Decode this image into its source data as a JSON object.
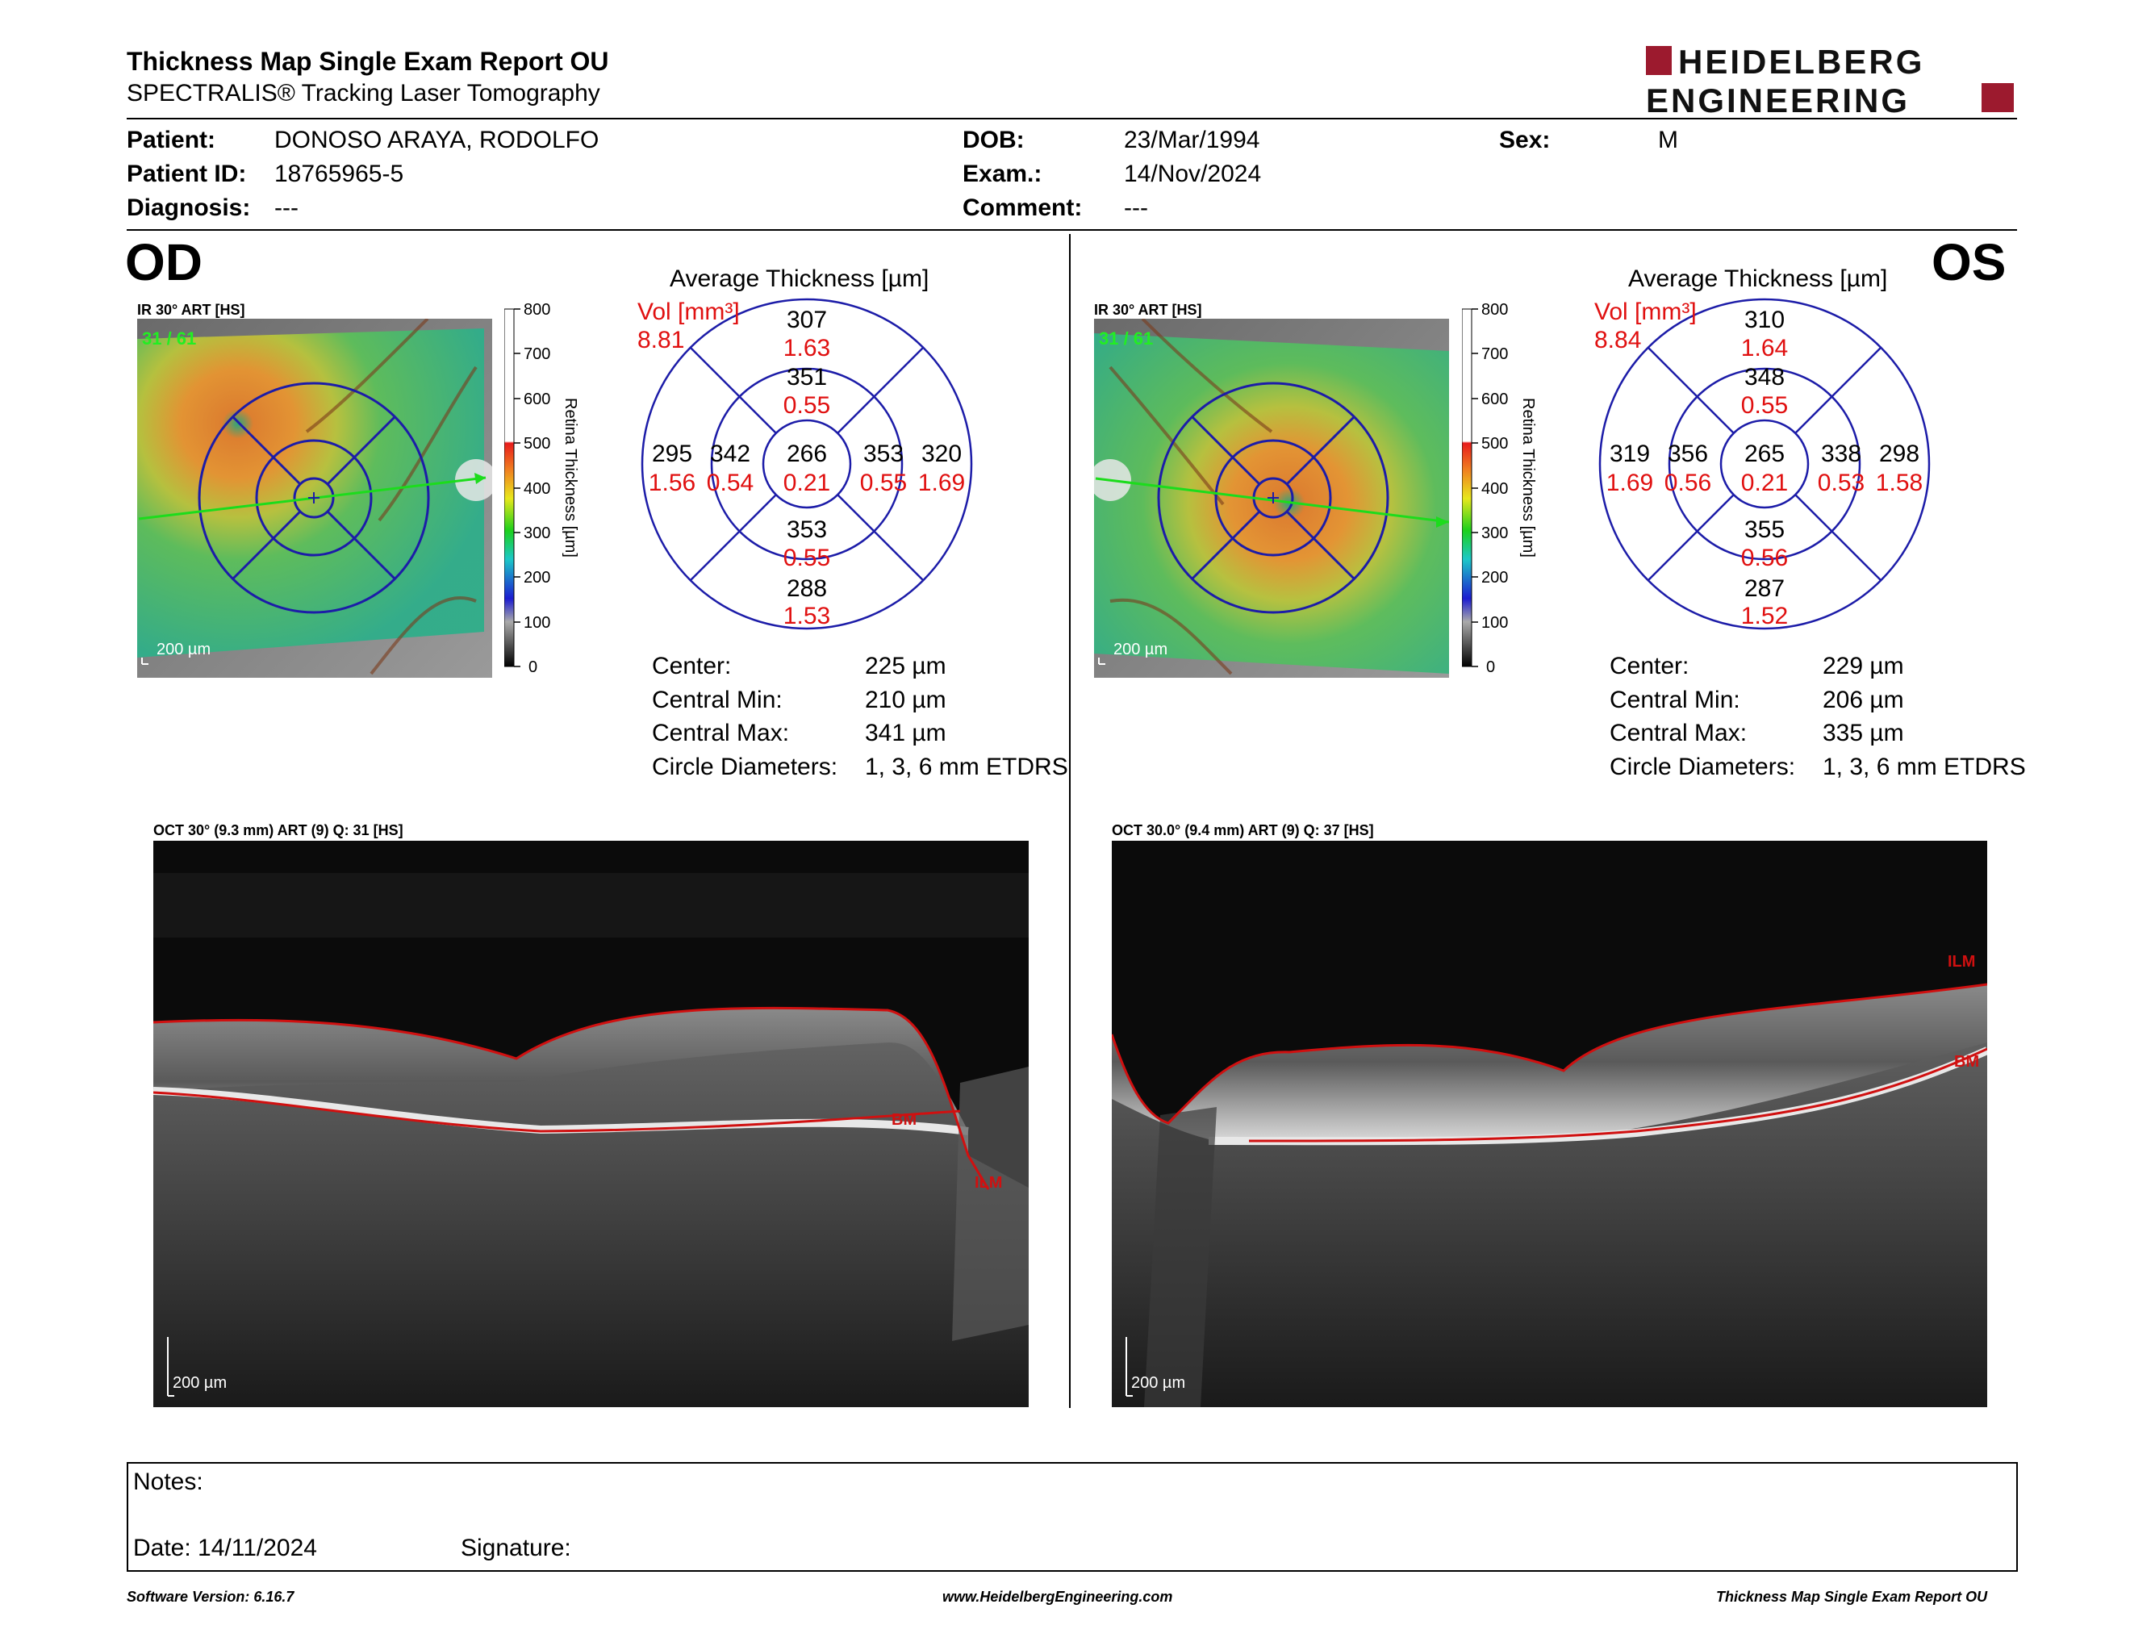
{
  "header": {
    "title": "Thickness Map Single Exam Report OU",
    "subtitle": "SPECTRALIS® Tracking Laser Tomography",
    "logo_line1": "HEIDELBERG",
    "logo_line2": "ENGINEERING"
  },
  "patient": {
    "patient_label": "Patient:",
    "patient_value": "DONOSO ARAYA, RODOLFO",
    "id_label": "Patient ID:",
    "id_value": "18765965-5",
    "diagnosis_label": "Diagnosis:",
    "diagnosis_value": "---",
    "dob_label": "DOB:",
    "dob_value": "23/Mar/1994",
    "exam_label": "Exam.:",
    "exam_value": "14/Nov/2024",
    "comment_label": "Comment:",
    "comment_value": "---",
    "sex_label": "Sex:",
    "sex_value": "M"
  },
  "od": {
    "eye": "OD",
    "map_label": "IR 30° ART [HS]",
    "frames": "31 / 61",
    "scale": "200 µm",
    "colorbar_title": "Retina Thickness [µm]",
    "colorbar_ticks": [
      "800",
      "700",
      "600",
      "500",
      "400",
      "300",
      "200",
      "100",
      "0"
    ],
    "etdrs_title": "Average Thickness [µm]",
    "vol_label": "Vol [mm³]",
    "vol_total": "8.81",
    "sectors": {
      "center": {
        "thk": "266",
        "vol": "0.21"
      },
      "inner_sup": {
        "thk": "351",
        "vol": "0.55"
      },
      "inner_inf": {
        "thk": "353",
        "vol": "0.55"
      },
      "inner_nasal_left": {
        "thk": "342",
        "vol": "0.54"
      },
      "inner_temp_right": {
        "thk": "353",
        "vol": "0.55"
      },
      "outer_sup": {
        "thk": "307",
        "vol": "1.63"
      },
      "outer_inf": {
        "thk": "288",
        "vol": "1.53"
      },
      "outer_left": {
        "thk": "295",
        "vol": "1.56"
      },
      "outer_right": {
        "thk": "320",
        "vol": "1.69"
      }
    },
    "stats": {
      "center_label": "Center:",
      "center_value": "225 µm",
      "min_label": "Central Min:",
      "min_value": "210 µm",
      "max_label": "Central Max:",
      "max_value": "341 µm",
      "diam_label": "Circle Diameters:",
      "diam_value": "1, 3, 6 mm ETDRS"
    },
    "oct_label": "OCT 30° (9.3 mm) ART (9) Q: 31 [HS]",
    "oct_scale": "200 µm",
    "oct_tags": {
      "bm": "BM",
      "ilm": "ILM"
    }
  },
  "os": {
    "eye": "OS",
    "map_label": "IR 30° ART [HS]",
    "frames": "31 / 61",
    "scale": "200 µm",
    "colorbar_title": "Retina Thickness [µm]",
    "colorbar_ticks": [
      "800",
      "700",
      "600",
      "500",
      "400",
      "300",
      "200",
      "100",
      "0"
    ],
    "etdrs_title": "Average Thickness [µm]",
    "vol_label": "Vol [mm³]",
    "vol_total": "8.84",
    "sectors": {
      "center": {
        "thk": "265",
        "vol": "0.21"
      },
      "inner_sup": {
        "thk": "348",
        "vol": "0.55"
      },
      "inner_inf": {
        "thk": "355",
        "vol": "0.56"
      },
      "inner_nasal_left": {
        "thk": "356",
        "vol": "0.56"
      },
      "inner_temp_right": {
        "thk": "338",
        "vol": "0.53"
      },
      "outer_sup": {
        "thk": "310",
        "vol": "1.64"
      },
      "outer_inf": {
        "thk": "287",
        "vol": "1.52"
      },
      "outer_left": {
        "thk": "319",
        "vol": "1.69"
      },
      "outer_right": {
        "thk": "298",
        "vol": "1.58"
      }
    },
    "stats": {
      "center_label": "Center:",
      "center_value": "229 µm",
      "min_label": "Central Min:",
      "min_value": "206 µm",
      "max_label": "Central Max:",
      "max_value": "335 µm",
      "diam_label": "Circle Diameters:",
      "diam_value": "1, 3, 6 mm ETDRS"
    },
    "oct_label": "OCT 30.0° (9.4 mm) ART (9) Q: 37 [HS]",
    "oct_scale": "200 µm",
    "oct_tags": {
      "bm": "BM",
      "ilm": "ILM"
    }
  },
  "notes": {
    "notes_label": "Notes:",
    "date_label": "Date: 14/11/2024",
    "signature_label": "Signature:"
  },
  "footer": {
    "version": "Software Version: 6.16.7",
    "url": "www.HeidelbergEngineering.com",
    "report": "Thickness Map Single Exam Report OU"
  },
  "colors": {
    "accent_red": "#9c1a2e",
    "vol_red": "#e01010",
    "circle_blue": "#1c1ca8",
    "line_red": "#d01010"
  }
}
